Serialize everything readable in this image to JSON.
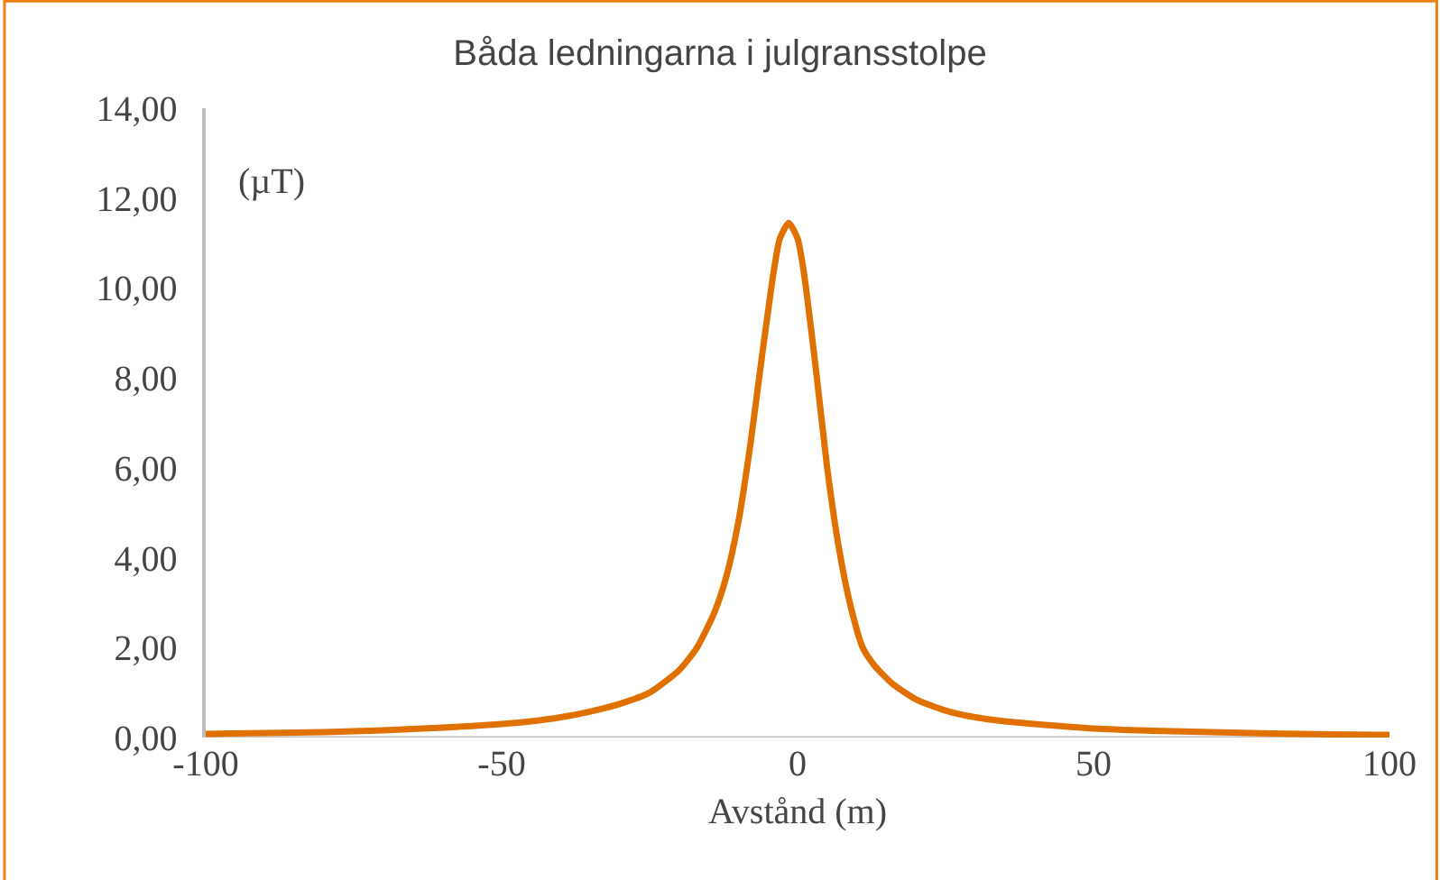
{
  "chart_data": {
    "type": "line",
    "title": "Båda ledningarna i julgransstolpe",
    "xlabel": "Avstånd (m)",
    "ylabel": "(µT)",
    "x": [
      -100,
      -90,
      -80,
      -70,
      -60,
      -50,
      -45,
      -40,
      -35,
      -30,
      -25,
      -20,
      -17,
      -14,
      -12,
      -10,
      -8,
      -6,
      -4,
      -3,
      -1.5,
      0,
      1,
      3,
      5,
      7,
      9,
      11,
      13,
      16,
      20,
      25,
      30,
      35,
      40,
      50,
      60,
      70,
      80,
      90,
      100
    ],
    "series": [
      {
        "color": "#e07000",
        "values": [
          0.08,
          0.1,
          0.12,
          0.16,
          0.22,
          0.3,
          0.36,
          0.45,
          0.58,
          0.75,
          1.0,
          1.5,
          2.0,
          2.8,
          3.6,
          4.8,
          6.5,
          8.5,
          10.4,
          11.1,
          11.45,
          11.1,
          10.4,
          8.3,
          6.0,
          4.2,
          2.9,
          2.0,
          1.6,
          1.2,
          0.85,
          0.6,
          0.45,
          0.36,
          0.3,
          0.2,
          0.15,
          0.12,
          0.09,
          0.07,
          0.06
        ]
      }
    ],
    "xlim": [
      -100,
      100
    ],
    "xticks": [
      -100,
      -50,
      0,
      50,
      100
    ],
    "ylim": [
      0,
      14
    ],
    "yticks": [
      {
        "value": 0,
        "label": "0,00"
      },
      {
        "value": 2,
        "label": "2,00"
      },
      {
        "value": 4,
        "label": "4,00"
      },
      {
        "value": 6,
        "label": "6,00"
      },
      {
        "value": 8,
        "label": "8,00"
      },
      {
        "value": 10,
        "label": "10,00"
      },
      {
        "value": 12,
        "label": "12,00"
      },
      {
        "value": 14,
        "label": "14,00"
      }
    ],
    "grid": false,
    "marker": "none",
    "line_style": "solid"
  }
}
